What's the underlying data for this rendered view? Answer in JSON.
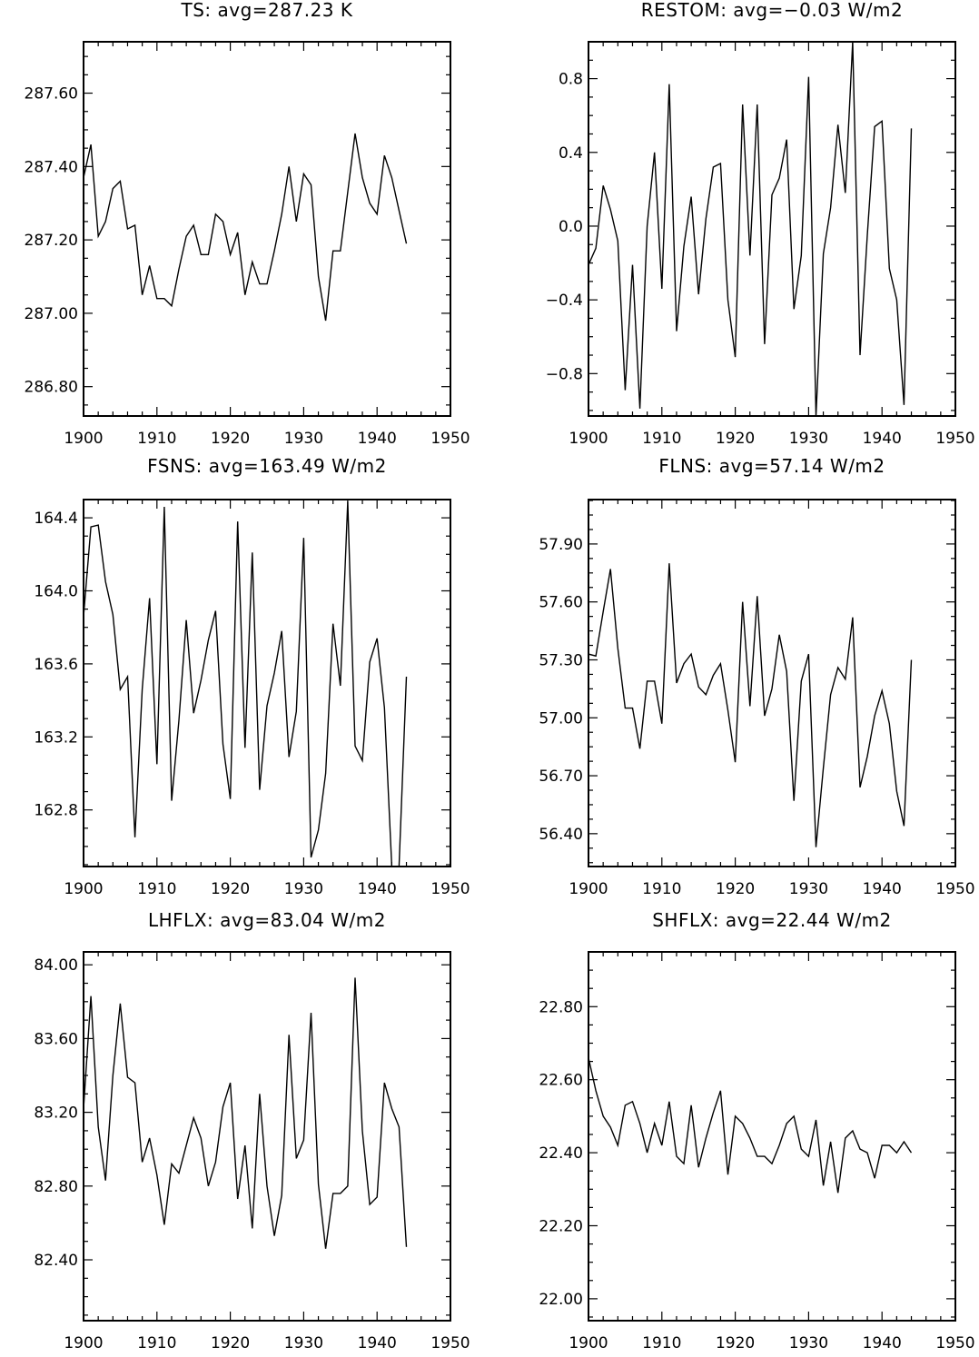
{
  "chart_data": [
    {
      "type": "line",
      "title": "TS: avg=287.23 K",
      "xlim": [
        1900,
        1950
      ],
      "ylim": [
        286.72,
        287.74
      ],
      "x_ticks": [
        "1900",
        "1910",
        "1920",
        "1930",
        "1940",
        "1950"
      ],
      "y_ticks": [
        286.8,
        287.0,
        287.2,
        287.4,
        287.6
      ],
      "y_tick_labels": [
        "286.80",
        "287.00",
        "287.20",
        "287.40",
        "287.60"
      ],
      "x": [
        1900,
        1901,
        1902,
        1903,
        1904,
        1905,
        1906,
        1907,
        1908,
        1909,
        1910,
        1911,
        1912,
        1913,
        1914,
        1915,
        1916,
        1917,
        1918,
        1919,
        1920,
        1921,
        1922,
        1923,
        1924,
        1925,
        1926,
        1927,
        1928,
        1929,
        1930,
        1931,
        1932,
        1933,
        1934,
        1935,
        1936,
        1937,
        1938,
        1939,
        1940,
        1941,
        1942,
        1943,
        1944
      ],
      "values": [
        287.37,
        287.46,
        287.21,
        287.25,
        287.34,
        287.36,
        287.23,
        287.24,
        287.05,
        287.13,
        287.04,
        287.04,
        287.02,
        287.12,
        287.21,
        287.24,
        287.16,
        287.16,
        287.27,
        287.25,
        287.16,
        287.22,
        287.05,
        287.14,
        287.08,
        287.08,
        287.17,
        287.27,
        287.4,
        287.25,
        287.38,
        287.35,
        287.1,
        286.98,
        287.17,
        287.17,
        287.33,
        287.49,
        287.37,
        287.3,
        287.27,
        287.43,
        287.37,
        287.28,
        287.19
      ]
    },
    {
      "type": "line",
      "title": "RESTOM: avg=−0.03 W/m2",
      "xlim": [
        1900,
        1950
      ],
      "ylim": [
        -1.03,
        1.0
      ],
      "x_ticks": [
        "1900",
        "1910",
        "1920",
        "1930",
        "1940",
        "1950"
      ],
      "y_ticks": [
        -0.8,
        -0.4,
        0.0,
        0.4,
        0.8
      ],
      "y_tick_labels": [
        "−0.8",
        "−0.4",
        "0.0",
        "0.4",
        "0.8"
      ],
      "x": [
        1900,
        1901,
        1902,
        1903,
        1904,
        1905,
        1906,
        1907,
        1908,
        1909,
        1910,
        1911,
        1912,
        1913,
        1914,
        1915,
        1916,
        1917,
        1918,
        1919,
        1920,
        1921,
        1922,
        1923,
        1924,
        1925,
        1926,
        1927,
        1928,
        1929,
        1930,
        1931,
        1932,
        1933,
        1934,
        1935,
        1936,
        1937,
        1938,
        1939,
        1940,
        1941,
        1942,
        1943,
        1944
      ],
      "values": [
        -0.21,
        -0.12,
        0.22,
        0.09,
        -0.08,
        -0.89,
        -0.21,
        -0.99,
        0.0,
        0.4,
        -0.34,
        0.77,
        -0.57,
        -0.11,
        0.16,
        -0.37,
        0.04,
        0.32,
        0.34,
        -0.4,
        -0.71,
        0.66,
        -0.16,
        0.66,
        -0.64,
        0.17,
        0.26,
        0.47,
        -0.45,
        -0.16,
        0.81,
        -1.03,
        -0.15,
        0.1,
        0.55,
        0.18,
        1.0,
        -0.7,
        -0.05,
        0.54,
        0.57,
        -0.23,
        -0.4,
        -0.97,
        0.53
      ]
    },
    {
      "type": "line",
      "title": "FSNS: avg=163.49 W/m2",
      "xlim": [
        1900,
        1950
      ],
      "ylim": [
        162.49,
        164.5
      ],
      "x_ticks": [
        "1900",
        "1910",
        "1920",
        "1930",
        "1940",
        "1950"
      ],
      "y_ticks": [
        162.8,
        163.2,
        163.6,
        164.0,
        164.4
      ],
      "y_tick_labels": [
        "162.8",
        "163.2",
        "163.6",
        "164.0",
        "164.4"
      ],
      "x": [
        1900,
        1901,
        1902,
        1903,
        1904,
        1905,
        1906,
        1907,
        1908,
        1909,
        1910,
        1911,
        1912,
        1913,
        1914,
        1915,
        1916,
        1917,
        1918,
        1919,
        1920,
        1921,
        1922,
        1923,
        1924,
        1925,
        1926,
        1927,
        1928,
        1929,
        1930,
        1931,
        1932,
        1933,
        1934,
        1935,
        1936,
        1937,
        1938,
        1939,
        1940,
        1941,
        1942,
        1943,
        1944
      ],
      "values": [
        163.86,
        164.35,
        164.36,
        164.05,
        163.87,
        163.46,
        163.53,
        162.65,
        163.46,
        163.96,
        163.05,
        164.46,
        162.85,
        163.29,
        163.84,
        163.33,
        163.51,
        163.73,
        163.89,
        163.16,
        162.86,
        164.38,
        163.14,
        164.21,
        162.91,
        163.37,
        163.55,
        163.78,
        163.09,
        163.34,
        164.29,
        162.54,
        162.69,
        163.0,
        163.82,
        163.48,
        164.49,
        163.15,
        163.07,
        163.61,
        163.74,
        163.36,
        162.49,
        162.49,
        163.53
      ]
    },
    {
      "type": "line",
      "title": "FLNS: avg=57.14 W/m2",
      "xlim": [
        1900,
        1950
      ],
      "ylim": [
        56.23,
        58.13
      ],
      "x_ticks": [
        "1900",
        "1910",
        "1920",
        "1930",
        "1940",
        "1950"
      ],
      "y_ticks": [
        56.4,
        56.7,
        57.0,
        57.3,
        57.6,
        57.9
      ],
      "y_tick_labels": [
        "56.40",
        "56.70",
        "57.00",
        "57.30",
        "57.60",
        "57.90"
      ],
      "x": [
        1900,
        1901,
        1902,
        1903,
        1904,
        1905,
        1906,
        1907,
        1908,
        1909,
        1910,
        1911,
        1912,
        1913,
        1914,
        1915,
        1916,
        1917,
        1918,
        1919,
        1920,
        1921,
        1922,
        1923,
        1924,
        1925,
        1926,
        1927,
        1928,
        1929,
        1930,
        1931,
        1932,
        1933,
        1934,
        1935,
        1936,
        1937,
        1938,
        1939,
        1940,
        1941,
        1942,
        1943,
        1944
      ],
      "values": [
        57.33,
        57.32,
        57.55,
        57.77,
        57.36,
        57.05,
        57.05,
        56.84,
        57.19,
        57.19,
        56.97,
        57.8,
        57.18,
        57.28,
        57.33,
        57.16,
        57.12,
        57.22,
        57.28,
        57.04,
        56.77,
        57.6,
        57.06,
        57.63,
        57.01,
        57.15,
        57.43,
        57.24,
        56.57,
        57.19,
        57.33,
        56.33,
        56.74,
        57.12,
        57.26,
        57.2,
        57.52,
        56.64,
        56.8,
        57.01,
        57.14,
        56.97,
        56.62,
        56.44,
        57.3
      ]
    },
    {
      "type": "line",
      "title": "LHFLX: avg=83.04 W/m2",
      "xlim": [
        1900,
        1950
      ],
      "ylim": [
        82.07,
        84.07
      ],
      "x_ticks": [
        "1900",
        "1910",
        "1920",
        "1930",
        "1940",
        "1950"
      ],
      "y_ticks": [
        82.4,
        82.8,
        83.2,
        83.6,
        84.0
      ],
      "y_tick_labels": [
        "82.40",
        "82.80",
        "83.20",
        "83.60",
        "84.00"
      ],
      "x": [
        1900,
        1901,
        1902,
        1903,
        1904,
        1905,
        1906,
        1907,
        1908,
        1909,
        1910,
        1911,
        1912,
        1913,
        1914,
        1915,
        1916,
        1917,
        1918,
        1919,
        1920,
        1921,
        1922,
        1923,
        1924,
        1925,
        1926,
        1927,
        1928,
        1929,
        1930,
        1931,
        1932,
        1933,
        1934,
        1935,
        1936,
        1937,
        1938,
        1939,
        1940,
        1941,
        1942,
        1943,
        1944
      ],
      "values": [
        83.22,
        83.83,
        83.12,
        82.83,
        83.4,
        83.79,
        83.39,
        83.36,
        82.93,
        83.06,
        82.86,
        82.59,
        82.92,
        82.87,
        83.02,
        83.17,
        83.06,
        82.8,
        82.93,
        83.23,
        83.36,
        82.73,
        83.02,
        82.57,
        83.3,
        82.8,
        82.53,
        82.75,
        83.62,
        82.95,
        83.05,
        83.74,
        82.81,
        82.46,
        82.76,
        82.76,
        82.8,
        83.93,
        83.1,
        82.7,
        82.74,
        83.36,
        83.22,
        83.12,
        82.47
      ]
    },
    {
      "type": "line",
      "title": "SHFLX: avg=22.44 W/m2",
      "xlim": [
        1900,
        1950
      ],
      "ylim": [
        21.94,
        22.95
      ],
      "x_ticks": [
        "1900",
        "1910",
        "1920",
        "1930",
        "1940",
        "1950"
      ],
      "y_ticks": [
        22.0,
        22.2,
        22.4,
        22.6,
        22.8
      ],
      "y_tick_labels": [
        "22.00",
        "22.20",
        "22.40",
        "22.60",
        "22.80"
      ],
      "x": [
        1900,
        1901,
        1902,
        1903,
        1904,
        1905,
        1906,
        1907,
        1908,
        1909,
        1910,
        1911,
        1912,
        1913,
        1914,
        1915,
        1916,
        1917,
        1918,
        1919,
        1920,
        1921,
        1922,
        1923,
        1924,
        1925,
        1926,
        1927,
        1928,
        1929,
        1930,
        1931,
        1932,
        1933,
        1934,
        1935,
        1936,
        1937,
        1938,
        1939,
        1940,
        1941,
        1942,
        1943,
        1944
      ],
      "values": [
        22.66,
        22.57,
        22.5,
        22.47,
        22.42,
        22.53,
        22.54,
        22.48,
        22.4,
        22.48,
        22.42,
        22.54,
        22.39,
        22.37,
        22.53,
        22.36,
        22.44,
        22.51,
        22.57,
        22.34,
        22.5,
        22.48,
        22.44,
        22.39,
        22.39,
        22.37,
        22.42,
        22.48,
        22.5,
        22.41,
        22.39,
        22.49,
        22.31,
        22.43,
        22.29,
        22.44,
        22.46,
        22.41,
        22.4,
        22.33,
        22.42,
        22.42,
        22.4,
        22.43,
        22.4
      ]
    }
  ]
}
